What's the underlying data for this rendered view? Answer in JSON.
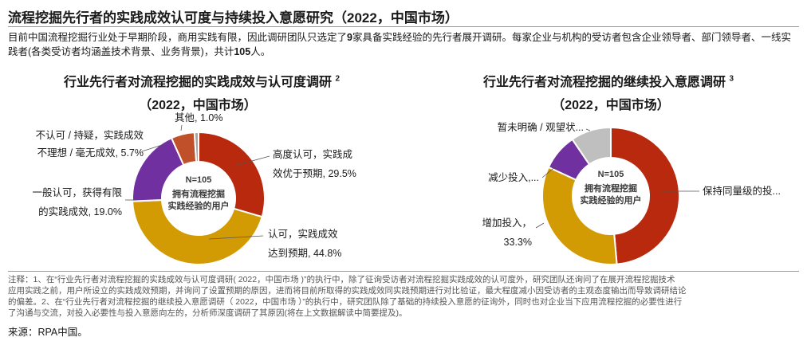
{
  "page": {
    "title": "流程挖掘先行者的实践成效认可度与持续投入意愿研究（2022，中国市场）",
    "intro_prefix": "目前中国流程挖掘行业处于早期阶段，商用实践有限，因此调研团队只选定了",
    "intro_bold1": "9",
    "intro_mid": "家具备实践经验的先行者展开调研。每家企业与机构的受访者包含企业领导者、部门领导者、一线实践者(各类受访者均涵盖技术背景、业务背景)，共计",
    "intro_bold2": "105",
    "intro_suffix": "人。",
    "note_line1": "注释：1、在“行业先行者对流程挖掘的实践成效与认可度调研(  2022，中国市场  )”的执行中，除了征询受访者对流程挖掘实践成效的认可度外，研究团队还询问了在展开流程挖掘技术",
    "note_line2": "应用实践之前，用户所设立的实践成效预期，并询问了设置预期的原因，进而将目前所取得的实践成效同实践预期进行对比验证，最大程度减小因受访者的主观态度输出而导致调研结论",
    "note_line3": "的偏差。2、在“行业先行者对流程挖掘的继续投入意愿调研（ 2022，中国市场 ）”的执行中，研究团队除了基础的持续投入意愿的征询外，同时也对企业当下应用流程挖掘的必要性进行",
    "note_line4": "了沟通与交流，对投入必要性与投入意愿向左的，分析师深度调研了其原因(将在上文数据解读中简要提及)。",
    "source": "来源：RPA中国。"
  },
  "chart_data": [
    {
      "type": "pie",
      "title": "行业先行者对流程挖掘的实践成效与认可度调研",
      "title_sup": "2",
      "subtitle": "（2022，中国市场）",
      "center_line1": "N=105",
      "center_line2": "拥有流程挖掘",
      "center_line3": "实践经验的用户",
      "slices": [
        {
          "label_line1": "高度认可，实践成",
          "label_line2": "效优于预期, 29.5%",
          "value": 29.5,
          "color": "#b8290e"
        },
        {
          "label_line1": "认可，实践成效",
          "label_line2": "达到预期, 44.8%",
          "value": 44.8,
          "color": "#d29b04"
        },
        {
          "label_line1": "一般认可，获得有限",
          "label_line2": "的实践成效, 19.0%",
          "value": 19.0,
          "color": "#7030a0"
        },
        {
          "label_line1": "不认可 / 持疑，实践成效",
          "label_line2": "不理想 / 毫无成效, 5.7%",
          "value": 5.7,
          "color": "#c0502a"
        },
        {
          "label_line1": "其他, 1.0%",
          "label_line2": "",
          "value": 1.0,
          "color": "#a6a6a6"
        }
      ]
    },
    {
      "type": "pie",
      "title": "行业先行者对流程挖掘的继续投入意愿调研",
      "title_sup": "3",
      "subtitle": "（2022，中国市场）",
      "center_line1": "N=105",
      "center_line2": "拥有流程挖掘",
      "center_line3": "实践经验的用户",
      "slices": [
        {
          "label_line1": "保持同量级的投...",
          "label_line2": "",
          "value": 48.6,
          "color": "#b8290e"
        },
        {
          "label_line1": "增加投入，",
          "label_line2": "33.3%",
          "value": 33.3,
          "color": "#d29b04"
        },
        {
          "label_line1": "减少投入,...",
          "label_line2": "",
          "value": 8.6,
          "color": "#7030a0"
        },
        {
          "label_line1": "暂未明确 / 观望状...",
          "label_line2": "",
          "value": 9.5,
          "color": "#bfbfbf"
        }
      ]
    }
  ]
}
